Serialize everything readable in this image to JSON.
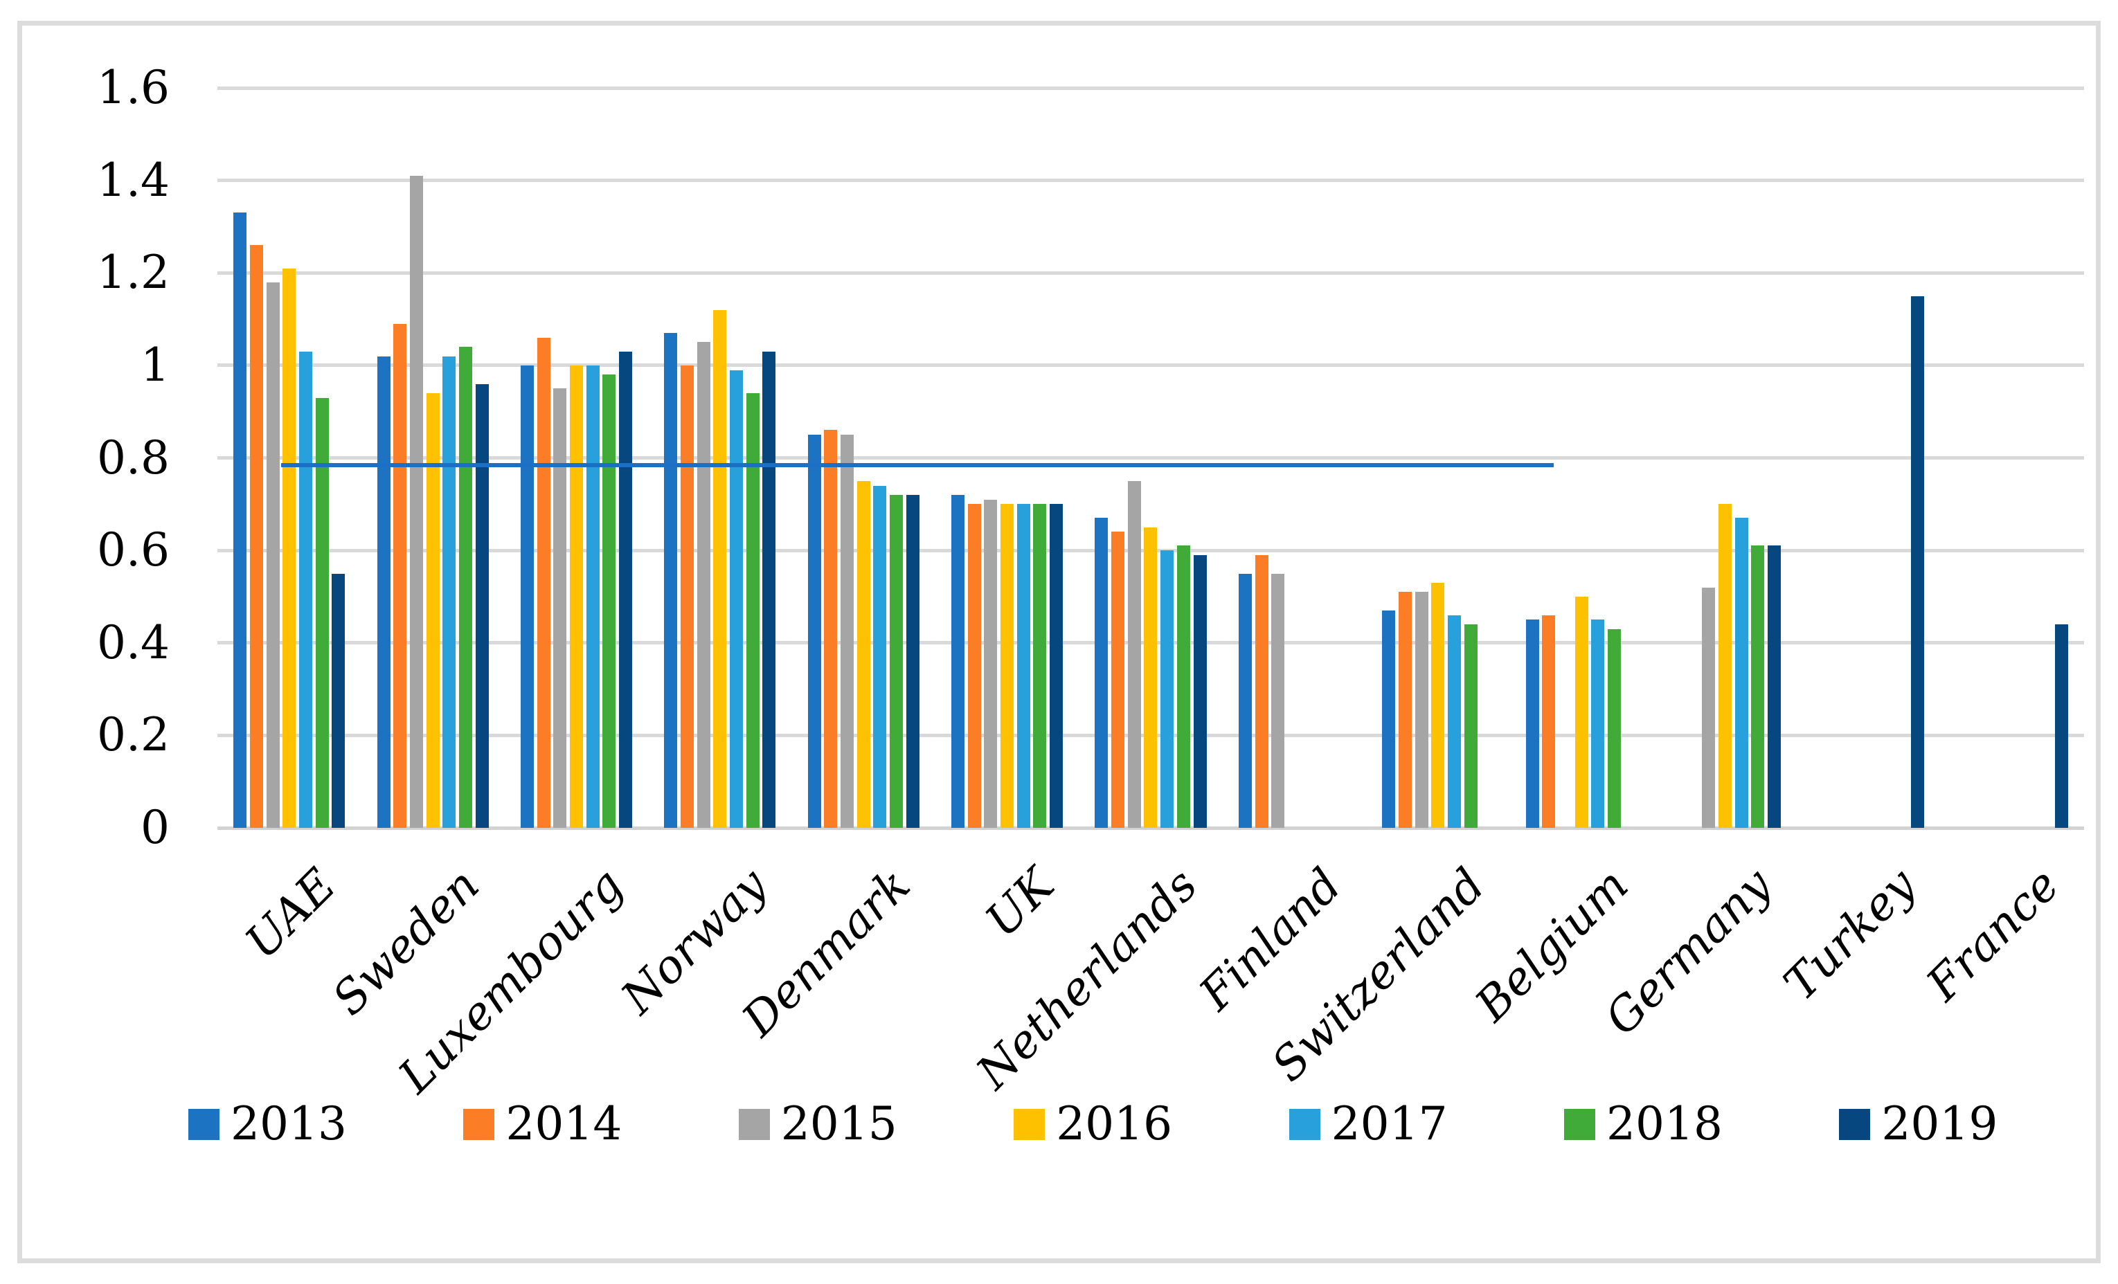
{
  "chart_data": {
    "type": "bar",
    "title": "",
    "categories": [
      "UAE",
      "Sweden",
      "Luxembourg",
      "Norway",
      "Denmark",
      "UK",
      "Netherlands",
      "Finland",
      "Switzerland",
      "Belgium",
      "Germany",
      "Turkey",
      "France"
    ],
    "series": [
      {
        "name": "2013",
        "color": "#1b73c2",
        "values": [
          1.33,
          1.02,
          1.0,
          1.07,
          0.85,
          0.72,
          0.67,
          0.55,
          0.47,
          0.45,
          null,
          null,
          null
        ]
      },
      {
        "name": "2014",
        "color": "#fb7d26",
        "values": [
          1.26,
          1.09,
          1.06,
          1.0,
          0.86,
          0.7,
          0.64,
          0.59,
          0.51,
          0.46,
          null,
          null,
          null
        ]
      },
      {
        "name": "2015",
        "color": "#a5a5a5",
        "values": [
          1.18,
          1.41,
          0.95,
          1.05,
          0.85,
          0.71,
          0.75,
          0.55,
          0.51,
          null,
          0.52,
          null,
          null
        ]
      },
      {
        "name": "2016",
        "color": "#fec100",
        "values": [
          1.21,
          0.94,
          1.0,
          1.12,
          0.75,
          0.7,
          0.65,
          null,
          0.53,
          0.5,
          0.7,
          null,
          null
        ]
      },
      {
        "name": "2017",
        "color": "#28a0dc",
        "values": [
          1.03,
          1.02,
          1.0,
          0.99,
          0.74,
          0.7,
          0.6,
          null,
          0.46,
          0.45,
          0.67,
          null,
          null
        ]
      },
      {
        "name": "2018",
        "color": "#40ab38",
        "values": [
          0.93,
          1.04,
          0.98,
          0.94,
          0.72,
          0.7,
          0.61,
          null,
          0.44,
          0.43,
          0.61,
          null,
          null
        ]
      },
      {
        "name": "2019",
        "color": "#05477e",
        "values": [
          0.55,
          0.96,
          1.03,
          1.03,
          0.72,
          0.7,
          0.59,
          null,
          null,
          null,
          0.61,
          1.15,
          0.44
        ]
      }
    ],
    "yticks": [
      "0",
      "0.2",
      "0.4",
      "0.6",
      "0.8",
      "1",
      "1.2",
      "1.4",
      "1.6"
    ],
    "ylim": [
      0,
      1.6
    ],
    "grid": true,
    "legend_position": "bottom",
    "legend_entries": [
      "2013",
      "2014",
      "2015",
      "2016",
      "2017",
      "2018",
      "2019"
    ],
    "reference_line": {
      "value": 0.784,
      "color": "#1b6fc5",
      "x_start_frac": 0.034,
      "x_end_frac": 0.716
    }
  }
}
